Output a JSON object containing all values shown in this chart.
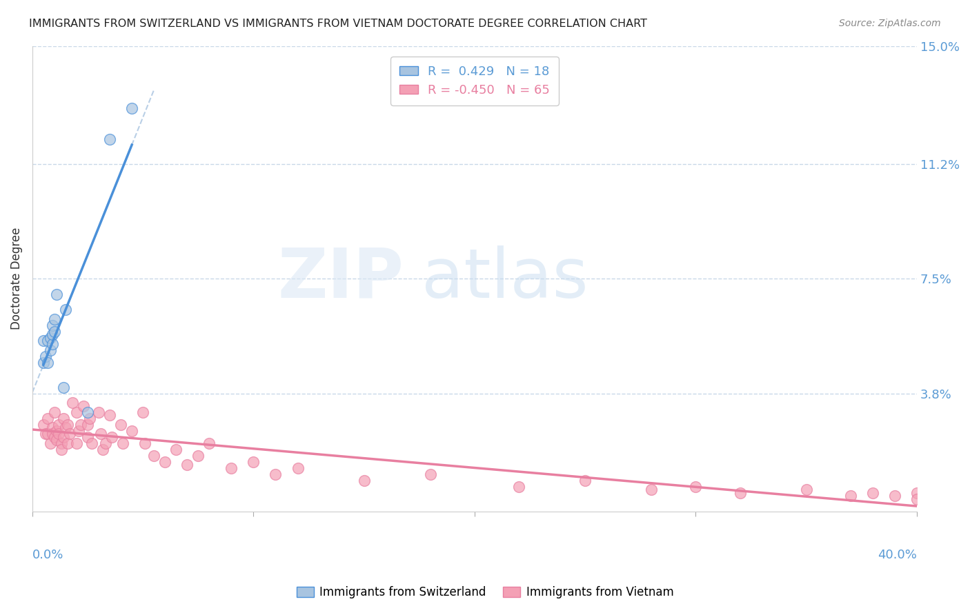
{
  "title": "IMMIGRANTS FROM SWITZERLAND VS IMMIGRANTS FROM VIETNAM DOCTORATE DEGREE CORRELATION CHART",
  "source": "Source: ZipAtlas.com",
  "ylabel": "Doctorate Degree",
  "yticks": [
    0.0,
    0.038,
    0.075,
    0.112,
    0.15
  ],
  "ytick_labels": [
    "",
    "3.8%",
    "7.5%",
    "11.2%",
    "15.0%"
  ],
  "xlim": [
    0.0,
    0.4
  ],
  "ylim": [
    0.0,
    0.15
  ],
  "legend1_R": "0.429",
  "legend1_N": "18",
  "legend2_R": "-0.450",
  "legend2_N": "65",
  "color_swiss": "#a8c4e0",
  "color_vietnam": "#f4a0b5",
  "line_color_swiss": "#4a90d9",
  "line_color_vietnam": "#e87fa0",
  "swiss_x": [
    0.005,
    0.005,
    0.006,
    0.007,
    0.007,
    0.008,
    0.008,
    0.009,
    0.009,
    0.009,
    0.01,
    0.01,
    0.011,
    0.014,
    0.015,
    0.025,
    0.035,
    0.045
  ],
  "swiss_y": [
    0.048,
    0.055,
    0.05,
    0.048,
    0.055,
    0.052,
    0.056,
    0.054,
    0.057,
    0.06,
    0.058,
    0.062,
    0.07,
    0.04,
    0.065,
    0.032,
    0.12,
    0.13
  ],
  "vietnam_x": [
    0.005,
    0.006,
    0.007,
    0.007,
    0.008,
    0.009,
    0.009,
    0.01,
    0.01,
    0.011,
    0.011,
    0.012,
    0.012,
    0.013,
    0.013,
    0.014,
    0.014,
    0.015,
    0.016,
    0.016,
    0.017,
    0.018,
    0.02,
    0.02,
    0.021,
    0.022,
    0.023,
    0.025,
    0.025,
    0.026,
    0.027,
    0.03,
    0.031,
    0.032,
    0.033,
    0.035,
    0.036,
    0.04,
    0.041,
    0.045,
    0.05,
    0.051,
    0.055,
    0.06,
    0.065,
    0.07,
    0.075,
    0.08,
    0.09,
    0.1,
    0.11,
    0.12,
    0.15,
    0.18,
    0.22,
    0.25,
    0.28,
    0.3,
    0.32,
    0.35,
    0.37,
    0.38,
    0.39,
    0.4,
    0.4
  ],
  "vietnam_y": [
    0.028,
    0.025,
    0.03,
    0.025,
    0.022,
    0.027,
    0.025,
    0.032,
    0.024,
    0.026,
    0.023,
    0.028,
    0.025,
    0.022,
    0.02,
    0.024,
    0.03,
    0.027,
    0.028,
    0.022,
    0.025,
    0.035,
    0.032,
    0.022,
    0.026,
    0.028,
    0.034,
    0.024,
    0.028,
    0.03,
    0.022,
    0.032,
    0.025,
    0.02,
    0.022,
    0.031,
    0.024,
    0.028,
    0.022,
    0.026,
    0.032,
    0.022,
    0.018,
    0.016,
    0.02,
    0.015,
    0.018,
    0.022,
    0.014,
    0.016,
    0.012,
    0.014,
    0.01,
    0.012,
    0.008,
    0.01,
    0.007,
    0.008,
    0.006,
    0.007,
    0.005,
    0.006,
    0.005,
    0.006,
    0.004
  ]
}
